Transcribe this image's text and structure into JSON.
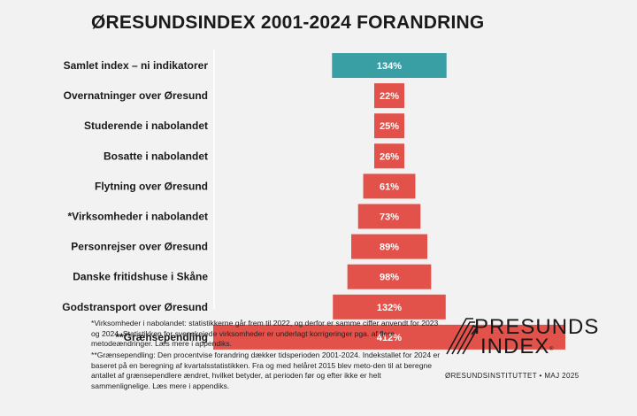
{
  "title": "ØRESUNDSINDEX 2001-2024 FORANDRING",
  "chart_data": {
    "type": "bar",
    "orientation": "horizontal-centered",
    "title": "ØRESUNDSINDEX 2001-2024 FORANDRING",
    "categories": [
      "Samlet index – ni indikatorer",
      "Overnatninger over Øresund",
      "Studerende i nabolandet",
      "Bosatte i nabolandet",
      "Flytning over Øresund",
      "*Virksomheder i nabolandet",
      "Personrejser over Øresund",
      "Danske fritidshuse i Skåne",
      "Godstransport over Øresund",
      "**Grænsependling"
    ],
    "values": [
      134,
      22,
      25,
      26,
      61,
      73,
      89,
      98,
      132,
      412
    ],
    "value_labels": [
      "134%",
      "22%",
      "25%",
      "26%",
      "61%",
      "73%",
      "89%",
      "98%",
      "132%",
      "412%"
    ],
    "unit": "%",
    "colors": [
      "#3a9ea5",
      "#e2524a",
      "#e2524a",
      "#e2524a",
      "#e2524a",
      "#e2524a",
      "#e2524a",
      "#e2524a",
      "#e2524a",
      "#e2524a"
    ]
  },
  "footnotes": {
    "fn1": "*Virksomheder i nabolandet: statistikkerne går frem til 2022, og derfor er samme ciffer anvendt for 2023 og 2024. Statistikken for svenskejede virksomheder er underlagt korrigeringer pga. af flere metodeændringer. Læs mere i appendiks.",
    "fn2": "**Grænsependling: Den procentvise forandring dækker tidsperioden 2001-2024. Indekstallet for 2024 er baseret på en beregning af kvartalsstatistikken. Fra og med helåret 2015 blev meto-den til at beregne antallet af grænsependlere ændret, hvilket betyder, at perioden før og efter ikke er helt sammenlignelige. Læs mere i appendiks."
  },
  "logo": {
    "line1": "PRESUNDS",
    "line2": "INDEX",
    "registered": "®",
    "logo_name": "oresundsindex-logo"
  },
  "credit": "ØRESUNDSINSTITUTTET • MAJ 2025",
  "colors": {
    "accent_teal": "#3a9ea5",
    "accent_red": "#e2524a",
    "background": "#f2f2f2"
  }
}
